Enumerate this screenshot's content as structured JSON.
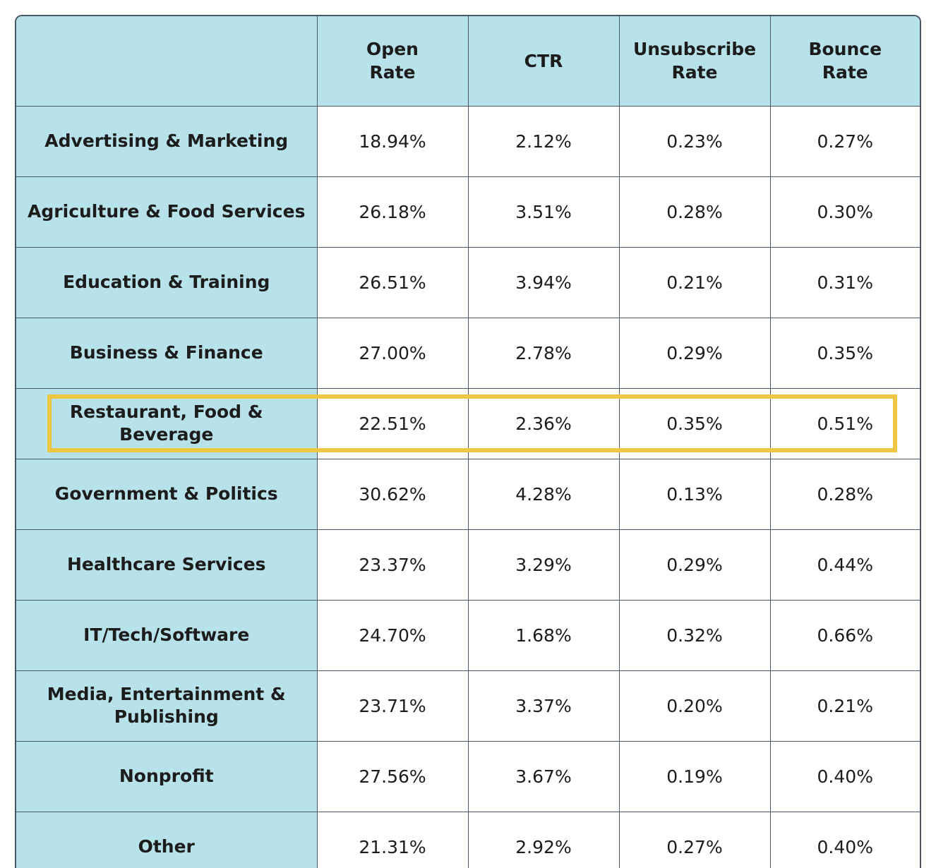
{
  "chart_data": {
    "type": "table",
    "columns": [
      "",
      "Open\nRate",
      "CTR",
      "Unsubscribe\nRate",
      "Bounce\nRate"
    ],
    "rows": [
      {
        "industry": "Advertising & Marketing",
        "open_rate": "18.94%",
        "ctr": "2.12%",
        "unsubscribe_rate": "0.23%",
        "bounce_rate": "0.27%"
      },
      {
        "industry": "Agriculture & Food Services",
        "open_rate": "26.18%",
        "ctr": "3.51%",
        "unsubscribe_rate": "0.28%",
        "bounce_rate": "0.30%"
      },
      {
        "industry": "Education & Training",
        "open_rate": "26.51%",
        "ctr": "3.94%",
        "unsubscribe_rate": "0.21%",
        "bounce_rate": "0.31%"
      },
      {
        "industry": "Business & Finance",
        "open_rate": "27.00%",
        "ctr": "2.78%",
        "unsubscribe_rate": "0.29%",
        "bounce_rate": "0.35%"
      },
      {
        "industry": "Restaurant, Food & Beverage",
        "open_rate": "22.51%",
        "ctr": "2.36%",
        "unsubscribe_rate": "0.35%",
        "bounce_rate": "0.51%"
      },
      {
        "industry": "Government & Politics",
        "open_rate": "30.62%",
        "ctr": "4.28%",
        "unsubscribe_rate": "0.13%",
        "bounce_rate": "0.28%"
      },
      {
        "industry": "Healthcare Services",
        "open_rate": "23.37%",
        "ctr": "3.29%",
        "unsubscribe_rate": "0.29%",
        "bounce_rate": "0.44%"
      },
      {
        "industry": "IT/Tech/Software",
        "open_rate": "24.70%",
        "ctr": "1.68%",
        "unsubscribe_rate": "0.32%",
        "bounce_rate": "0.66%"
      },
      {
        "industry": "Media, Entertainment & Publishing",
        "open_rate": "23.71%",
        "ctr": "3.37%",
        "unsubscribe_rate": "0.20%",
        "bounce_rate": "0.21%"
      },
      {
        "industry": "Nonprofit",
        "open_rate": "27.56%",
        "ctr": "3.67%",
        "unsubscribe_rate": "0.19%",
        "bounce_rate": "0.40%"
      },
      {
        "industry": "Other",
        "open_rate": "21.31%",
        "ctr": "2.92%",
        "unsubscribe_rate": "0.27%",
        "bounce_rate": "0.40%"
      }
    ],
    "highlighted_row": "Restaurant, Food & Beverage"
  },
  "colors": {
    "header_fill": "#b8e2e9",
    "border": "#4a5565",
    "highlight": "#efc644"
  }
}
